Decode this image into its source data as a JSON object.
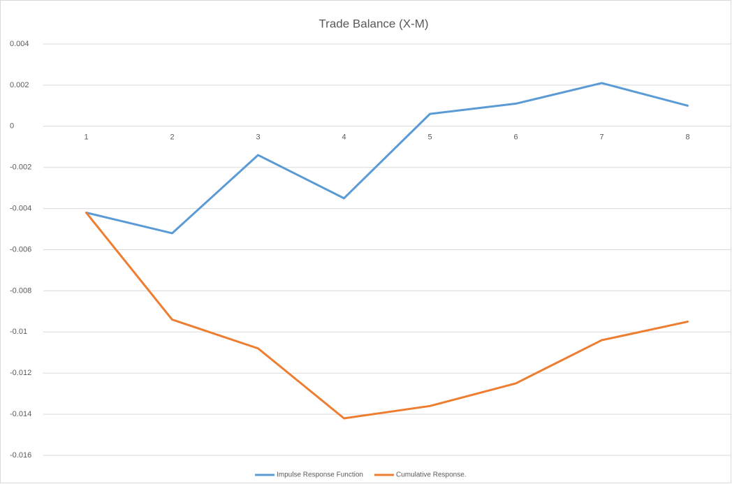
{
  "chart_data": {
    "type": "line",
    "title": "Trade Balance (X-M)",
    "categories": [
      "1",
      "2",
      "3",
      "4",
      "5",
      "6",
      "7",
      "8"
    ],
    "series": [
      {
        "name": "Impulse Response Function",
        "color": "#5b9bd5",
        "values": [
          -0.0042,
          -0.0052,
          -0.0014,
          -0.0035,
          0.0006,
          0.0011,
          0.0021,
          0.001
        ]
      },
      {
        "name": "Cumulative Response.",
        "color": "#ed7d31",
        "values": [
          -0.0042,
          -0.0094,
          -0.0108,
          -0.0142,
          -0.0136,
          -0.0125,
          -0.0104,
          -0.0095
        ]
      }
    ],
    "ylim": [
      -0.016,
      0.004
    ],
    "yticks": [
      0.004,
      0.002,
      0,
      -0.002,
      -0.004,
      -0.006,
      -0.008,
      -0.01,
      -0.012,
      -0.014,
      -0.016
    ],
    "grid": true,
    "legend": "bottom"
  }
}
